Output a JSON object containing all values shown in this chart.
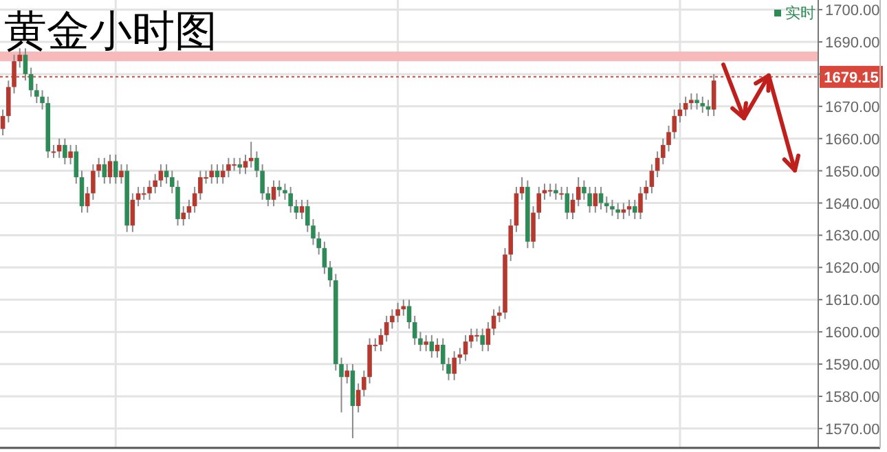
{
  "chart_data": {
    "type": "candlestick",
    "title": "黄金小时图",
    "categories": [
      null,
      null,
      null,
      null,
      null,
      null,
      null,
      null,
      null,
      null,
      null,
      null,
      null,
      null,
      null,
      null,
      null,
      null,
      null,
      null,
      null,
      null,
      null,
      null,
      null,
      null,
      null,
      null,
      null,
      null,
      null,
      null,
      null,
      null,
      null,
      null,
      null,
      null,
      null,
      null,
      null,
      null,
      null,
      null,
      null,
      null,
      null,
      null,
      null,
      null,
      null,
      null,
      null,
      null,
      null,
      null,
      null,
      null,
      null,
      null,
      null,
      null,
      null,
      null,
      null,
      null,
      null,
      null,
      null,
      null,
      null,
      null,
      null,
      null,
      null,
      null,
      null,
      null,
      null,
      null,
      null,
      null,
      null,
      null,
      null,
      null,
      null,
      null,
      null,
      null,
      null,
      null,
      null,
      null,
      null,
      null,
      null,
      null,
      null,
      null,
      null,
      null,
      null,
      null,
      null,
      null,
      null,
      null,
      null,
      null,
      null,
      null,
      null,
      null,
      null,
      null,
      null,
      null,
      null,
      null,
      null,
      null,
      null,
      null,
      null,
      null,
      null,
      null,
      null,
      null,
      null,
      null,
      null,
      null,
      null,
      null,
      null,
      null,
      null,
      null,
      null,
      null,
      null,
      null,
      null
    ],
    "annotations": [
      "实时"
    ],
    "ohlc": [
      [
        1663,
        1669,
        1661,
        1667
      ],
      [
        1667,
        1678,
        1665,
        1676
      ],
      [
        1676,
        1686,
        1674,
        1684
      ],
      [
        1684,
        1688,
        1682,
        1686
      ],
      [
        1686,
        1688,
        1678,
        1680
      ],
      [
        1680,
        1682,
        1673,
        1675
      ],
      [
        1675,
        1677,
        1671,
        1673
      ],
      [
        1673,
        1675,
        1669,
        1671
      ],
      [
        1671,
        1673,
        1654,
        1656
      ],
      [
        1656,
        1658,
        1654,
        1656
      ],
      [
        1656,
        1660,
        1654,
        1658
      ],
      [
        1658,
        1660,
        1652,
        1654
      ],
      [
        1654,
        1658,
        1652,
        1656
      ],
      [
        1656,
        1658,
        1646,
        1648
      ],
      [
        1648,
        1650,
        1637,
        1639
      ],
      [
        1639,
        1645,
        1637,
        1643
      ],
      [
        1643,
        1652,
        1641,
        1650
      ],
      [
        1650,
        1654,
        1648,
        1652
      ],
      [
        1652,
        1654,
        1646,
        1648
      ],
      [
        1648,
        1655,
        1646,
        1653
      ],
      [
        1653,
        1655,
        1646,
        1648
      ],
      [
        1648,
        1652,
        1646,
        1650
      ],
      [
        1650,
        1652,
        1631,
        1633
      ],
      [
        1633,
        1643,
        1631,
        1641
      ],
      [
        1641,
        1645,
        1639,
        1643
      ],
      [
        1643,
        1645,
        1641,
        1643
      ],
      [
        1643,
        1647,
        1641,
        1645
      ],
      [
        1645,
        1649,
        1643,
        1647
      ],
      [
        1647,
        1652,
        1645,
        1650
      ],
      [
        1650,
        1652,
        1646,
        1648
      ],
      [
        1648,
        1650,
        1643,
        1645
      ],
      [
        1645,
        1647,
        1633,
        1635
      ],
      [
        1635,
        1639,
        1633,
        1637
      ],
      [
        1637,
        1641,
        1635,
        1639
      ],
      [
        1639,
        1645,
        1637,
        1643
      ],
      [
        1643,
        1650,
        1641,
        1648
      ],
      [
        1648,
        1650,
        1646,
        1648
      ],
      [
        1648,
        1652,
        1646,
        1650
      ],
      [
        1650,
        1652,
        1646,
        1648
      ],
      [
        1648,
        1652,
        1646,
        1650
      ],
      [
        1650,
        1654,
        1648,
        1652
      ],
      [
        1652,
        1654,
        1650,
        1652
      ],
      [
        1652,
        1654,
        1649,
        1651
      ],
      [
        1651,
        1655,
        1649,
        1653
      ],
      [
        1653,
        1659,
        1651,
        1654
      ],
      [
        1654,
        1656,
        1648,
        1650
      ],
      [
        1650,
        1652,
        1641,
        1643
      ],
      [
        1643,
        1645,
        1639,
        1641
      ],
      [
        1641,
        1647,
        1639,
        1645
      ],
      [
        1645,
        1647,
        1642,
        1644
      ],
      [
        1644,
        1646,
        1641,
        1643
      ],
      [
        1643,
        1645,
        1637,
        1639
      ],
      [
        1639,
        1641,
        1635,
        1637
      ],
      [
        1637,
        1641,
        1635,
        1639
      ],
      [
        1639,
        1641,
        1631,
        1633
      ],
      [
        1633,
        1635,
        1627,
        1629
      ],
      [
        1629,
        1631,
        1624,
        1626
      ],
      [
        1626,
        1628,
        1618,
        1620
      ],
      [
        1620,
        1622,
        1614,
        1616
      ],
      [
        1616,
        1618,
        1588,
        1590
      ],
      [
        1590,
        1592,
        1575,
        1586
      ],
      [
        1586,
        1590,
        1584,
        1588
      ],
      [
        1588,
        1590,
        1567,
        1577
      ],
      [
        1577,
        1584,
        1575,
        1582
      ],
      [
        1582,
        1588,
        1580,
        1586
      ],
      [
        1586,
        1598,
        1584,
        1596
      ],
      [
        1596,
        1598,
        1594,
        1596
      ],
      [
        1596,
        1601,
        1594,
        1599
      ],
      [
        1599,
        1605,
        1597,
        1603
      ],
      [
        1603,
        1607,
        1601,
        1605
      ],
      [
        1605,
        1609,
        1603,
        1607
      ],
      [
        1607,
        1610,
        1605,
        1608
      ],
      [
        1608,
        1610,
        1601,
        1603
      ],
      [
        1603,
        1605,
        1596,
        1598
      ],
      [
        1598,
        1600,
        1594,
        1596
      ],
      [
        1596,
        1599,
        1594,
        1597
      ],
      [
        1597,
        1599,
        1592,
        1594
      ],
      [
        1594,
        1598,
        1592,
        1596
      ],
      [
        1596,
        1598,
        1588,
        1590
      ],
      [
        1590,
        1592,
        1585,
        1587
      ],
      [
        1587,
        1594,
        1585,
        1592
      ],
      [
        1592,
        1595,
        1590,
        1593
      ],
      [
        1593,
        1599,
        1591,
        1597
      ],
      [
        1597,
        1601,
        1595,
        1599
      ],
      [
        1599,
        1601,
        1597,
        1599
      ],
      [
        1599,
        1601,
        1594,
        1596
      ],
      [
        1596,
        1603,
        1594,
        1601
      ],
      [
        1601,
        1607,
        1599,
        1605
      ],
      [
        1605,
        1608,
        1603,
        1606
      ],
      [
        1606,
        1626,
        1604,
        1624
      ],
      [
        1624,
        1635,
        1622,
        1633
      ],
      [
        1633,
        1645,
        1631,
        1643
      ],
      [
        1643,
        1648,
        1641,
        1645
      ],
      [
        1645,
        1647,
        1626,
        1628
      ],
      [
        1628,
        1639,
        1626,
        1637
      ],
      [
        1637,
        1645,
        1635,
        1643
      ],
      [
        1643,
        1646,
        1641,
        1644
      ],
      [
        1644,
        1646,
        1642,
        1644
      ],
      [
        1644,
        1646,
        1641,
        1643
      ],
      [
        1643,
        1645,
        1641,
        1643
      ],
      [
        1643,
        1645,
        1635,
        1637
      ],
      [
        1637,
        1643,
        1635,
        1641
      ],
      [
        1641,
        1648,
        1639,
        1645
      ],
      [
        1645,
        1647,
        1641,
        1643
      ],
      [
        1643,
        1645,
        1637,
        1639
      ],
      [
        1639,
        1645,
        1637,
        1643
      ],
      [
        1643,
        1645,
        1638,
        1640
      ],
      [
        1640,
        1642,
        1637,
        1639
      ],
      [
        1639,
        1641,
        1636,
        1638
      ],
      [
        1638,
        1640,
        1635,
        1637
      ],
      [
        1637,
        1640,
        1635,
        1638
      ],
      [
        1638,
        1641,
        1636,
        1639
      ],
      [
        1639,
        1641,
        1635,
        1637
      ],
      [
        1637,
        1645,
        1635,
        1643
      ],
      [
        1643,
        1647,
        1641,
        1645
      ],
      [
        1645,
        1652,
        1643,
        1650
      ],
      [
        1650,
        1656,
        1648,
        1654
      ],
      [
        1654,
        1660,
        1652,
        1658
      ],
      [
        1658,
        1664,
        1656,
        1662
      ],
      [
        1662,
        1669,
        1660,
        1667
      ],
      [
        1667,
        1671,
        1665,
        1669
      ],
      [
        1669,
        1673,
        1667,
        1671
      ],
      [
        1671,
        1674,
        1669,
        1672
      ],
      [
        1672,
        1674,
        1669,
        1671
      ],
      [
        1671,
        1673,
        1668,
        1670
      ],
      [
        1670,
        1672,
        1667,
        1669
      ],
      [
        1669,
        1680,
        1667,
        1678
      ],
      null,
      null,
      null,
      null,
      null,
      null,
      null,
      null,
      null,
      null,
      null,
      null,
      null,
      null,
      null,
      null,
      null,
      null
    ],
    "ylim": [
      1564,
      1703
    ],
    "yticks": [
      {
        "value": 1570,
        "label": "1570.00"
      },
      {
        "value": 1580,
        "label": "1580.00"
      },
      {
        "value": 1590,
        "label": "1590.00"
      },
      {
        "value": 1600,
        "label": "1600.00"
      },
      {
        "value": 1610,
        "label": "1610.00"
      },
      {
        "value": 1620,
        "label": "1620.00"
      },
      {
        "value": 1630,
        "label": "1630.00"
      },
      {
        "value": 1640,
        "label": "1640.00"
      },
      {
        "value": 1650,
        "label": "1650.00"
      },
      {
        "value": 1660,
        "label": "1660.00"
      },
      {
        "value": 1670,
        "label": "1670.00"
      },
      {
        "value": 1680,
        "label": null
      },
      {
        "value": 1690,
        "label": "1690.00"
      },
      {
        "value": 1700,
        "label": "1700.00"
      }
    ],
    "ref_lines": [
      {
        "axis": "y",
        "value": 1679.15,
        "label": "1679.15",
        "color": "#d9473a",
        "line_style": "dotted"
      }
    ],
    "bands": [
      {
        "axis": "y",
        "from": 1684,
        "to": 1687,
        "color": "#f7b9b9"
      }
    ],
    "grid": true
  }
}
